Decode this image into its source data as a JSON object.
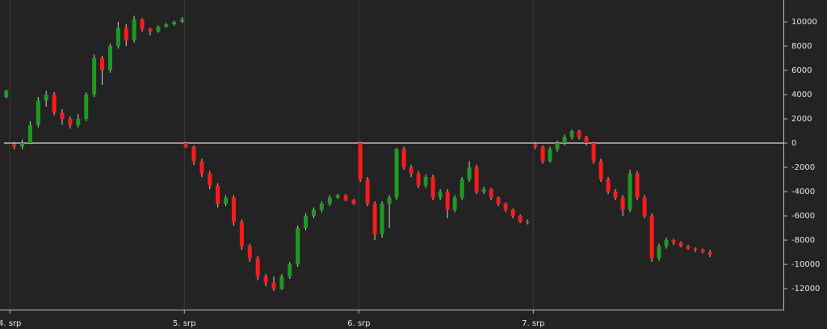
{
  "chart_data": {
    "type": "candlestick",
    "up_color": "#1f9a1f",
    "down_color": "#ff1a1a",
    "wick_color": "#d0d0d0",
    "zero_line": 0,
    "xlim": [
      -0.8,
      106.4
    ],
    "xticks": [
      {
        "value": 0,
        "label": "4. srp"
      },
      {
        "value": 24,
        "label": "5. srp"
      },
      {
        "value": 48,
        "label": "6. srp"
      },
      {
        "value": 72,
        "label": "7. srp"
      }
    ],
    "ylim": [
      -13730,
      11800
    ],
    "yticks": [
      -12000,
      -10000,
      -8000,
      -6000,
      -4000,
      -2000,
      0,
      2000,
      4000,
      6000,
      8000,
      10000
    ],
    "x": [
      -0.5,
      0.6,
      1.7,
      2.8,
      3.9,
      5,
      6.1,
      7.2,
      8.3,
      9.4,
      10.5,
      11.6,
      12.7,
      13.8,
      14.9,
      16,
      17.1,
      18.2,
      19.3,
      20.4,
      21.5,
      22.6,
      23.7,
      24.2,
      25.3,
      26.4,
      27.5,
      28.6,
      29.7,
      30.8,
      31.9,
      33,
      34.1,
      35.2,
      36.3,
      37.4,
      38.5,
      39.6,
      40.7,
      41.8,
      42.9,
      44,
      45.1,
      46.2,
      47.3,
      48.2,
      49.2,
      50.2,
      51.2,
      52.2,
      53.2,
      54.2,
      55.2,
      56.2,
      57.2,
      58.2,
      59.2,
      60.2,
      61.2,
      62.2,
      63.2,
      64.2,
      65.2,
      66.2,
      67.2,
      68.2,
      69.2,
      70.2,
      71.2,
      72.3,
      73.3,
      74.3,
      75.3,
      76.3,
      77.3,
      78.3,
      79.3,
      80.3,
      81.3,
      82.3,
      83.3,
      84.3,
      85.3,
      86.3,
      87.3,
      88.3,
      89.3,
      90.3,
      91.3,
      92.3,
      93.3,
      94.3,
      95.3,
      96.3
    ],
    "open": [
      3800,
      -100,
      -300,
      0,
      1500,
      3500,
      4000,
      2500,
      2000,
      1500,
      2000,
      4000,
      7000,
      6000,
      8000,
      9500,
      8500,
      10200,
      9400,
      9200,
      9600,
      9800,
      10000,
      0,
      -300,
      -1500,
      -2500,
      -3500,
      -5000,
      -4500,
      -6500,
      -8500,
      -9500,
      -11000,
      -11500,
      -12000,
      -11000,
      -10000,
      -7000,
      -6000,
      -5500,
      -5000,
      -4500,
      -4300,
      -4700,
      0,
      -3000,
      -5000,
      -7500,
      -5000,
      -4500,
      -500,
      -2000,
      -2500,
      -3500,
      -2800,
      -4500,
      -4000,
      -5500,
      -4500,
      -3000,
      -2000,
      -4000,
      -3800,
      -4500,
      -5000,
      -5500,
      -6000,
      -6500,
      -100,
      -300,
      -1500,
      -500,
      0,
      500,
      1000,
      500,
      0,
      -1500,
      -3000,
      -4000,
      -4500,
      -5500,
      -2500,
      -4500,
      -6000,
      -9500,
      -8500,
      -8000,
      -8200,
      -8500,
      -8700,
      -8800,
      -9000
    ],
    "high": [
      4400,
      100,
      300,
      1800,
      3800,
      4300,
      4200,
      2800,
      2200,
      2400,
      4200,
      7300,
      7200,
      8200,
      10000,
      9800,
      10500,
      10300,
      9500,
      9700,
      9900,
      10100,
      10400,
      100,
      -200,
      -1300,
      -2300,
      -3300,
      -4300,
      -4300,
      -6300,
      -8300,
      -9300,
      -10800,
      -11000,
      -10800,
      -9800,
      -6800,
      -5800,
      -5300,
      -4800,
      -4300,
      -4200,
      -4200,
      -4600,
      100,
      -2800,
      -4800,
      -4800,
      -4300,
      -400,
      -300,
      -1800,
      -2300,
      -2600,
      -2600,
      -3800,
      -3800,
      -4300,
      -2800,
      -1500,
      -1800,
      -3600,
      -3700,
      -4400,
      -4900,
      -5400,
      -5900,
      -6300,
      100,
      -200,
      -300,
      200,
      700,
      1100,
      1100,
      600,
      100,
      -1300,
      -2800,
      -3800,
      -4300,
      -2200,
      -2300,
      -4300,
      -5800,
      -8300,
      -7800,
      -7900,
      -8100,
      -8400,
      -8600,
      -8700,
      -8800
    ],
    "low": [
      3700,
      -500,
      -500,
      -100,
      1300,
      3000,
      2300,
      1500,
      1200,
      1300,
      1800,
      3800,
      4800,
      5800,
      7800,
      8000,
      8300,
      9200,
      8900,
      9100,
      9500,
      9700,
      9900,
      -400,
      -1800,
      -2800,
      -3800,
      -5300,
      -5200,
      -6800,
      -8800,
      -9800,
      -11300,
      -11800,
      -12200,
      -12100,
      -11200,
      -10200,
      -7200,
      -6200,
      -5700,
      -5200,
      -4600,
      -4800,
      -5100,
      -3200,
      -5200,
      -8000,
      -7800,
      -7000,
      -4700,
      -2200,
      -2800,
      -3700,
      -3700,
      -4700,
      -4700,
      -6200,
      -5700,
      -4700,
      -3200,
      -4200,
      -4200,
      -4700,
      -5200,
      -5700,
      -6200,
      -6600,
      -6700,
      -500,
      -1700,
      -1600,
      -700,
      -200,
      300,
      300,
      -200,
      -1700,
      -3200,
      -4200,
      -4700,
      -6000,
      -5700,
      -4700,
      -6200,
      -9800,
      -9700,
      -8700,
      -8400,
      -8600,
      -8800,
      -9000,
      -9100,
      -9400
    ],
    "close": [
      4300,
      -300,
      0,
      1500,
      3500,
      4000,
      2500,
      2000,
      1500,
      2000,
      4000,
      7000,
      6000,
      8000,
      9500,
      8500,
      10200,
      9400,
      9200,
      9600,
      9800,
      10000,
      10200,
      -300,
      -1500,
      -2500,
      -3500,
      -5000,
      -4500,
      -6500,
      -8500,
      -9500,
      -11000,
      -11500,
      -12000,
      -11000,
      -10000,
      -7000,
      -6000,
      -5500,
      -5000,
      -4500,
      -4300,
      -4700,
      -5000,
      -3000,
      -5000,
      -7500,
      -5000,
      -4500,
      -500,
      -2000,
      -2500,
      -3500,
      -2800,
      -4500,
      -4000,
      -5500,
      -4500,
      -3000,
      -2000,
      -4000,
      -3800,
      -4500,
      -5000,
      -5500,
      -6000,
      -6500,
      -6600,
      -300,
      -1500,
      -500,
      0,
      500,
      1000,
      500,
      0,
      -1500,
      -3000,
      -4000,
      -4500,
      -5500,
      -2500,
      -4500,
      -6000,
      -9500,
      -8500,
      -8000,
      -8200,
      -8500,
      -8700,
      -8800,
      -9000,
      -9200
    ]
  }
}
